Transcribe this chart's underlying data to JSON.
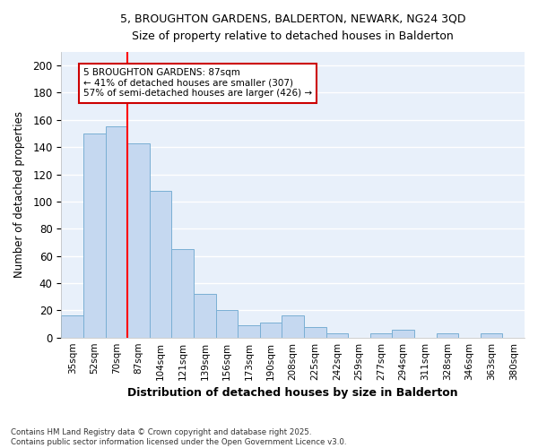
{
  "title_line1": "5, BROUGHTON GARDENS, BALDERTON, NEWARK, NG24 3QD",
  "title_line2": "Size of property relative to detached houses in Balderton",
  "xlabel": "Distribution of detached houses by size in Balderton",
  "ylabel": "Number of detached properties",
  "bar_labels": [
    "35sqm",
    "52sqm",
    "70sqm",
    "87sqm",
    "104sqm",
    "121sqm",
    "139sqm",
    "156sqm",
    "173sqm",
    "190sqm",
    "208sqm",
    "225sqm",
    "242sqm",
    "259sqm",
    "277sqm",
    "294sqm",
    "311sqm",
    "328sqm",
    "346sqm",
    "363sqm",
    "380sqm"
  ],
  "bar_values": [
    16,
    150,
    155,
    143,
    108,
    65,
    32,
    20,
    9,
    11,
    16,
    8,
    3,
    0,
    3,
    6,
    0,
    3,
    0,
    3,
    0
  ],
  "bar_color": "#c5d8f0",
  "bar_edge_color": "#7aafd4",
  "bg_color": "#e8f0fa",
  "grid_color": "#ffffff",
  "redline_index": 3,
  "annotation_text": "5 BROUGHTON GARDENS: 87sqm\n← 41% of detached houses are smaller (307)\n57% of semi-detached houses are larger (426) →",
  "annotation_box_color": "#ffffff",
  "annotation_box_edge_color": "#cc0000",
  "ylim": [
    0,
    210
  ],
  "yticks": [
    0,
    20,
    40,
    60,
    80,
    100,
    120,
    140,
    160,
    180,
    200
  ],
  "footnote": "Contains HM Land Registry data © Crown copyright and database right 2025.\nContains public sector information licensed under the Open Government Licence v3.0.",
  "fig_bg": "#ffffff"
}
